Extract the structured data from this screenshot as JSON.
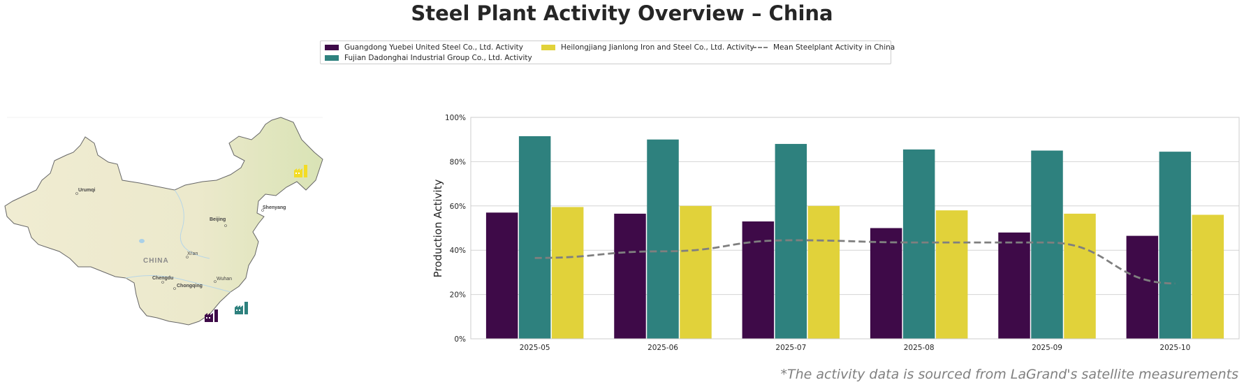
{
  "title": "Steel Plant Activity Overview – China",
  "footnote": "*The activity data is sourced from LaGrand's satellite measurements",
  "legend": [
    {
      "label": "Guangdong Yuebei United Steel Co., Ltd. Activity",
      "color": "#3e0a48",
      "kind": "bar"
    },
    {
      "label": "Fujian Dadonghai Industrial Group Co., Ltd. Activity",
      "color": "#2e817e",
      "kind": "bar"
    },
    {
      "label": "Heilongjiang Jianlong Iron and Steel Co., Ltd. Activity",
      "color": "#e1d23a",
      "kind": "bar"
    },
    {
      "label": "Mean Steelplant Activity in China",
      "color": "#7f7f7f",
      "kind": "dashed-line"
    }
  ],
  "map": {
    "country_label": "CHINA",
    "cities": [
      "Urumqi",
      "Beijing",
      "Shenyang",
      "Xi'an",
      "Chengdu",
      "Chongqing",
      "Wuhan"
    ],
    "markers": [
      {
        "name": "Guangdong Yuebei United Steel Co., Ltd.",
        "icon": "factory-icon",
        "color": "#3e0a48"
      },
      {
        "name": "Fujian Dadonghai Industrial Group Co., Ltd.",
        "icon": "factory-icon",
        "color": "#2e817e"
      },
      {
        "name": "Heilongjiang Jianlong Iron and Steel Co., Ltd.",
        "icon": "factory-icon",
        "color": "#f3dc26"
      }
    ]
  },
  "chart_data": {
    "type": "bar",
    "title": "",
    "xlabel": "",
    "ylabel": "Production Activity",
    "ylim": [
      0,
      100
    ],
    "yticks": [
      "0%",
      "20%",
      "40%",
      "60%",
      "80%",
      "100%"
    ],
    "grid": true,
    "legend_position": "top-center",
    "categories": [
      "2025-05",
      "2025-06",
      "2025-07",
      "2025-08",
      "2025-09",
      "2025-10"
    ],
    "series": [
      {
        "name": "Guangdong Yuebei United Steel Co., Ltd. Activity",
        "color": "#3e0a48",
        "values": [
          57,
          56.5,
          53,
          50,
          48,
          46.5
        ]
      },
      {
        "name": "Fujian Dadonghai Industrial Group Co., Ltd. Activity",
        "color": "#2e817e",
        "values": [
          91.5,
          90,
          88,
          85.5,
          85,
          84.5
        ]
      },
      {
        "name": "Heilongjiang Jianlong Iron and Steel Co., Ltd. Activity",
        "color": "#e1d23a",
        "values": [
          59.5,
          60,
          60,
          58,
          56.5,
          56
        ]
      }
    ],
    "line": {
      "name": "Mean Steelplant Activity in China",
      "color": "#7f7f7f",
      "style": "dashed",
      "values": [
        36.5,
        39.5,
        44.5,
        43.5,
        43.5,
        25
      ]
    }
  }
}
